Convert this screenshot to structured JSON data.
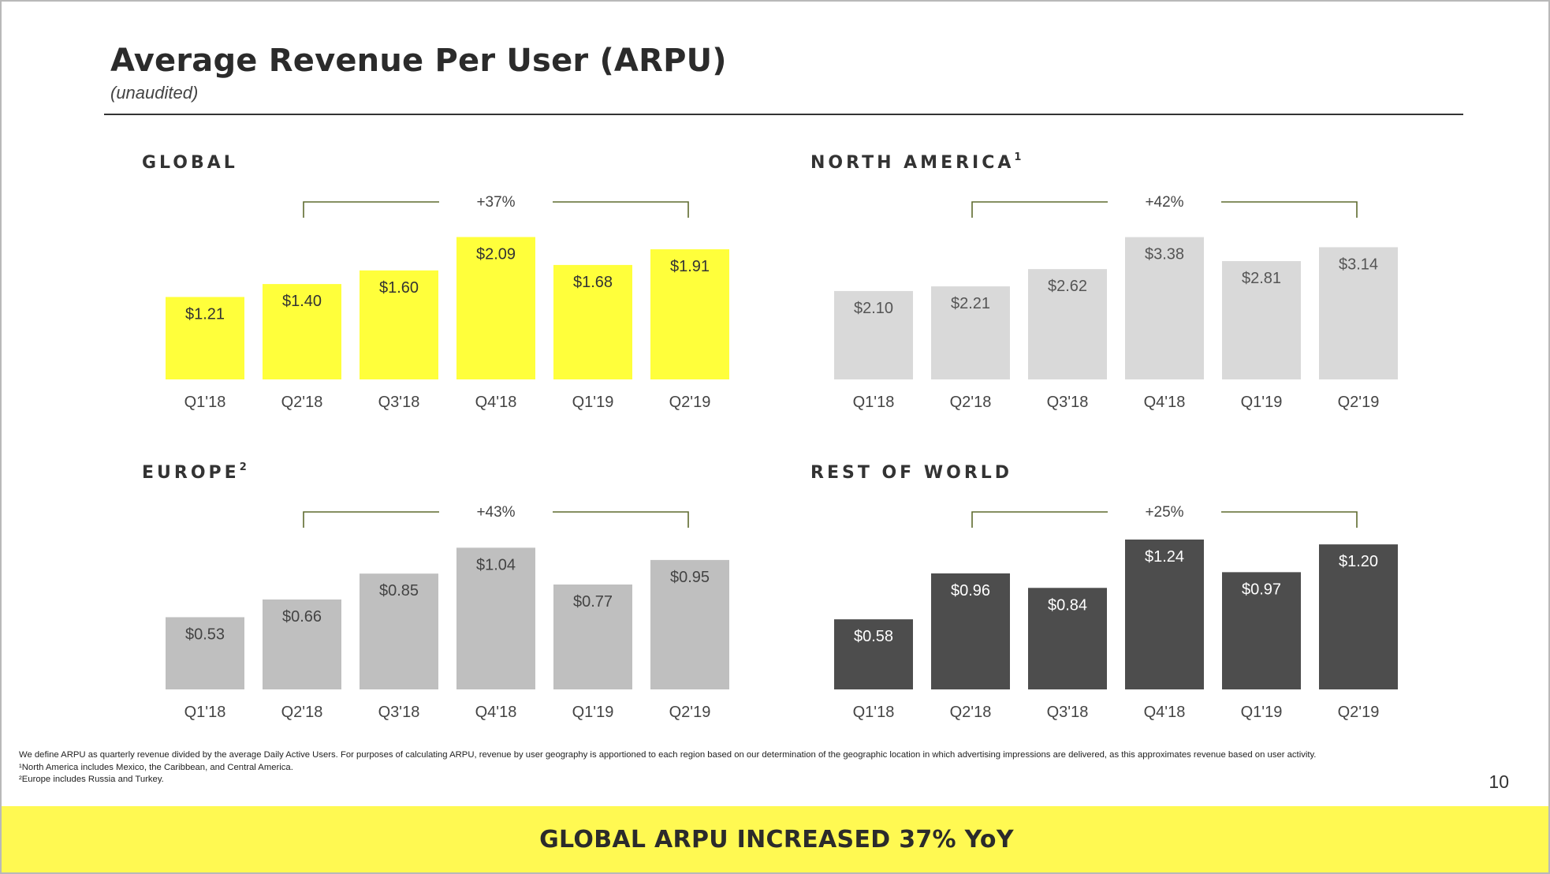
{
  "page": {
    "title": "Average Revenue Per User (ARPU)",
    "subtitle": "(unaudited)",
    "page_number": "10",
    "banner": "GLOBAL ARPU INCREASED 37% YoY",
    "footnotes": [
      "We define ARPU as quarterly revenue divided by the average Daily Active Users. For purposes of calculating ARPU, revenue by user geography is apportioned to each region based on our determination of the geographic location in which advertising impressions are delivered, as this approximates revenue based on user activity.",
      "¹North America includes Mexico, the Caribbean, and Central America.",
      "²Europe includes Russia and Turkey."
    ]
  },
  "colors": {
    "global": "#ffff3b",
    "north_america": "#d9d9d9",
    "europe": "#bfbfbf",
    "rest_of_world": "#4d4d4d",
    "bracket": "#5e6b2e",
    "banner": "#fff952"
  },
  "chart_data": [
    {
      "type": "bar",
      "title": "GLOBAL",
      "title_sup": "",
      "categories": [
        "Q1'18",
        "Q2'18",
        "Q3'18",
        "Q4'18",
        "Q1'19",
        "Q2'19"
      ],
      "values": [
        1.21,
        1.4,
        1.6,
        2.09,
        1.68,
        1.91
      ],
      "labels": [
        "$1.21",
        "$1.40",
        "$1.60",
        "$2.09",
        "$1.68",
        "$1.91"
      ],
      "ylim": [
        0,
        2.2
      ],
      "color_key": "global",
      "label_color": "#333333",
      "growth_label": "+37%",
      "growth_from": 1,
      "growth_to": 5
    },
    {
      "type": "bar",
      "title": "NORTH AMERICA",
      "title_sup": "1",
      "categories": [
        "Q1'18",
        "Q2'18",
        "Q3'18",
        "Q4'18",
        "Q1'19",
        "Q2'19"
      ],
      "values": [
        2.1,
        2.21,
        2.62,
        3.38,
        2.81,
        3.14
      ],
      "labels": [
        "$2.10",
        "$2.21",
        "$2.62",
        "$3.38",
        "$2.81",
        "$3.14"
      ],
      "ylim": [
        0,
        3.56
      ],
      "color_key": "north_america",
      "label_color": "#555555",
      "growth_label": "+42%",
      "growth_from": 1,
      "growth_to": 5
    },
    {
      "type": "bar",
      "title": "EUROPE",
      "title_sup": "2",
      "categories": [
        "Q1'18",
        "Q2'18",
        "Q3'18",
        "Q4'18",
        "Q1'19",
        "Q2'19"
      ],
      "values": [
        0.53,
        0.66,
        0.85,
        1.04,
        0.77,
        0.95
      ],
      "labels": [
        "$0.53",
        "$0.66",
        "$0.85",
        "$1.04",
        "$0.77",
        "$0.95"
      ],
      "ylim": [
        0,
        1.1
      ],
      "color_key": "europe",
      "label_color": "#444444",
      "growth_label": "+43%",
      "growth_from": 1,
      "growth_to": 5
    },
    {
      "type": "bar",
      "title": "REST OF WORLD",
      "title_sup": "",
      "categories": [
        "Q1'18",
        "Q2'18",
        "Q3'18",
        "Q4'18",
        "Q1'19",
        "Q2'19"
      ],
      "values": [
        0.58,
        0.96,
        0.84,
        1.24,
        0.97,
        1.2
      ],
      "labels": [
        "$0.58",
        "$0.96",
        "$0.84",
        "$1.24",
        "$0.97",
        "$1.20"
      ],
      "ylim": [
        0,
        1.24
      ],
      "color_key": "rest_of_world",
      "label_color": "#ffffff",
      "growth_label": "+25%",
      "growth_from": 1,
      "growth_to": 5
    }
  ]
}
